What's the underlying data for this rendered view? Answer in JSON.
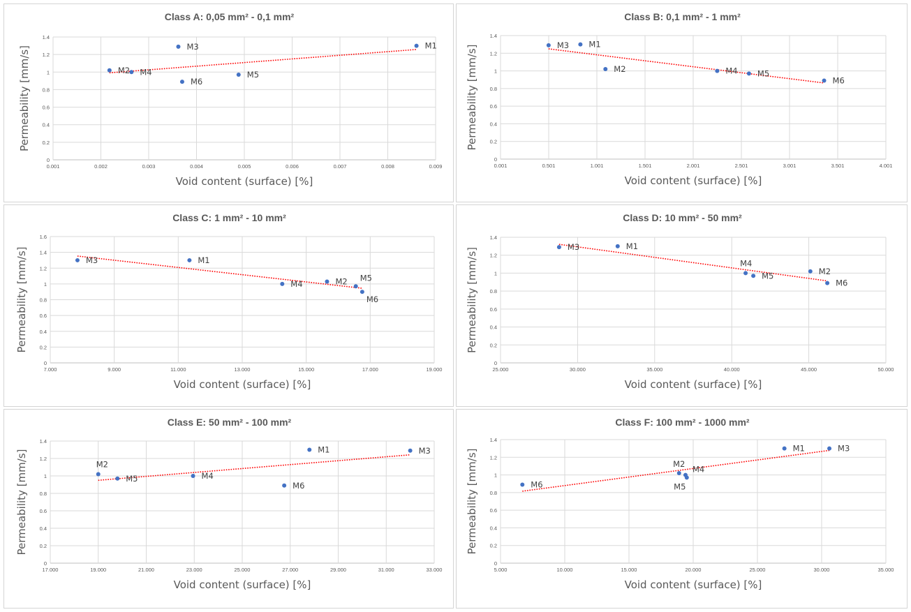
{
  "page": {
    "background": "#ffffff"
  },
  "style": {
    "marker_color": "#4472c4",
    "trend_color": "#ff0000",
    "grid_color": "#d9d9d9",
    "text_color": "#595959"
  },
  "chart_data": [
    {
      "type": "scatter",
      "title": "Class A: 0,05 mm² - 0,1 mm²",
      "xlabel": "Void content (surface) [%]",
      "ylabel": "Permeability [mm/s]",
      "xlim": [
        0.001,
        0.009
      ],
      "ylim": [
        0,
        1.4
      ],
      "x_ticks": [
        "0.001",
        "0.002",
        "0.003",
        "0.004",
        "0.005",
        "0.006",
        "0.007",
        "0.008",
        "0.009"
      ],
      "y_ticks": [
        "0",
        "0.2",
        "0.4",
        "0.6",
        "0.8",
        "1",
        "1.2",
        "1.4"
      ],
      "grid": true,
      "trendline": "linear",
      "points": [
        {
          "label": "M1",
          "x": 0.0086,
          "y": 1.3
        },
        {
          "label": "M2",
          "x": 0.00218,
          "y": 1.02
        },
        {
          "label": "M3",
          "x": 0.00362,
          "y": 1.29
        },
        {
          "label": "M4",
          "x": 0.00264,
          "y": 1.0
        },
        {
          "label": "M5",
          "x": 0.00488,
          "y": 0.97
        },
        {
          "label": "M6",
          "x": 0.0037,
          "y": 0.89
        }
      ]
    },
    {
      "type": "scatter",
      "title": "Class B: 0,1 mm² - 1 mm²",
      "xlabel": "Void content (surface) [%]",
      "ylabel": "Permeability [mm/s]",
      "xlim": [
        0.001,
        4.001
      ],
      "ylim": [
        0,
        1.4
      ],
      "x_ticks": [
        "0.001",
        "0.501",
        "1.001",
        "1.501",
        "2.001",
        "2.501",
        "3.001",
        "3.501",
        "4.001"
      ],
      "y_ticks": [
        "0",
        "0.2",
        "0.4",
        "0.6",
        "0.8",
        "1",
        "1.2",
        "1.4"
      ],
      "grid": true,
      "trendline": "linear",
      "points": [
        {
          "label": "M1",
          "x": 0.83,
          "y": 1.3
        },
        {
          "label": "M2",
          "x": 1.09,
          "y": 1.02
        },
        {
          "label": "M3",
          "x": 0.5,
          "y": 1.29
        },
        {
          "label": "M4",
          "x": 2.25,
          "y": 1.0
        },
        {
          "label": "M5",
          "x": 2.58,
          "y": 0.97
        },
        {
          "label": "M6",
          "x": 3.36,
          "y": 0.89
        }
      ]
    },
    {
      "type": "scatter",
      "title": "Class C: 1 mm² - 10 mm²",
      "xlabel": "Void content (surface) [%]",
      "ylabel": "Permeability [mm/s]",
      "xlim": [
        7.0,
        19.0
      ],
      "ylim": [
        0,
        1.6
      ],
      "x_ticks": [
        "7.000",
        "9.000",
        "11.000",
        "13.000",
        "15.000",
        "17.000",
        "19.000"
      ],
      "y_ticks": [
        "0",
        "0.2",
        "0.4",
        "0.6",
        "0.8",
        "1",
        "1.2",
        "1.4",
        "1.6"
      ],
      "grid": true,
      "trendline": "linear",
      "points": [
        {
          "label": "M1",
          "x": 11.35,
          "y": 1.3
        },
        {
          "label": "M2",
          "x": 15.65,
          "y": 1.03
        },
        {
          "label": "M3",
          "x": 7.85,
          "y": 1.3
        },
        {
          "label": "M4",
          "x": 14.25,
          "y": 1.0
        },
        {
          "label": "M5",
          "x": 16.55,
          "y": 0.97
        },
        {
          "label": "M6",
          "x": 16.75,
          "y": 0.9
        }
      ]
    },
    {
      "type": "scatter",
      "title": "Class D: 10 mm² - 50 mm²",
      "xlabel": "Void content (surface) [%]",
      "ylabel": "Permeability [mm/s]",
      "xlim": [
        25.0,
        50.0
      ],
      "ylim": [
        0,
        1.4
      ],
      "x_ticks": [
        "25.000",
        "30.000",
        "35.000",
        "40.000",
        "45.000",
        "50.000"
      ],
      "y_ticks": [
        "0",
        "0.2",
        "0.4",
        "0.6",
        "0.8",
        "1",
        "1.2",
        "1.4"
      ],
      "grid": true,
      "trendline": "linear",
      "points": [
        {
          "label": "M1",
          "x": 32.6,
          "y": 1.3
        },
        {
          "label": "M2",
          "x": 45.1,
          "y": 1.02
        },
        {
          "label": "M3",
          "x": 28.8,
          "y": 1.29
        },
        {
          "label": "M4",
          "x": 40.9,
          "y": 1.0
        },
        {
          "label": "M5",
          "x": 41.4,
          "y": 0.97
        },
        {
          "label": "M6",
          "x": 46.2,
          "y": 0.89
        }
      ]
    },
    {
      "type": "scatter",
      "title": "Class E: 50 mm² - 100 mm²",
      "xlabel": "Void content (surface) [%]",
      "ylabel": "Permeability [mm/s]",
      "xlim": [
        17.0,
        33.0
      ],
      "ylim": [
        0,
        1.4
      ],
      "x_ticks": [
        "17.000",
        "19.000",
        "21.000",
        "23.000",
        "25.000",
        "27.000",
        "29.000",
        "31.000",
        "33.000"
      ],
      "y_ticks": [
        "0",
        "0.2",
        "0.4",
        "0.6",
        "0.8",
        "1",
        "1.2",
        "1.4"
      ],
      "grid": true,
      "trendline": "linear",
      "points": [
        {
          "label": "M1",
          "x": 27.8,
          "y": 1.3
        },
        {
          "label": "M2",
          "x": 19.0,
          "y": 1.02
        },
        {
          "label": "M3",
          "x": 32.0,
          "y": 1.29
        },
        {
          "label": "M4",
          "x": 22.95,
          "y": 1.0
        },
        {
          "label": "M5",
          "x": 19.8,
          "y": 0.97
        },
        {
          "label": "M6",
          "x": 26.75,
          "y": 0.89
        }
      ]
    },
    {
      "type": "scatter",
      "title": "Class F: 100 mm² - 1000 mm²",
      "xlabel": "Void content (surface) [%]",
      "ylabel": "Permeability [mm/s]",
      "xlim": [
        5.0,
        35.0
      ],
      "ylim": [
        0,
        1.4
      ],
      "x_ticks": [
        "5.000",
        "10.000",
        "15.000",
        "20.000",
        "25.000",
        "30.000",
        "35.000"
      ],
      "y_ticks": [
        "0",
        "0.2",
        "0.4",
        "0.6",
        "0.8",
        "1",
        "1.2",
        "1.4"
      ],
      "grid": true,
      "trendline": "linear",
      "points": [
        {
          "label": "M1",
          "x": 27.1,
          "y": 1.3
        },
        {
          "label": "M2",
          "x": 18.9,
          "y": 1.02
        },
        {
          "label": "M3",
          "x": 30.6,
          "y": 1.3
        },
        {
          "label": "M4",
          "x": 19.4,
          "y": 1.0
        },
        {
          "label": "M5",
          "x": 19.5,
          "y": 0.97
        },
        {
          "label": "M6",
          "x": 6.7,
          "y": 0.89
        }
      ]
    }
  ]
}
